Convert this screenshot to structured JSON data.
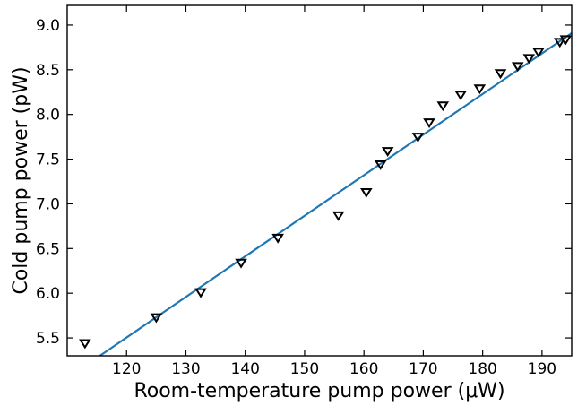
{
  "chart_data": {
    "type": "scatter",
    "title": "",
    "xlabel": "Room-temperature pump power (μW)",
    "ylabel": "Cold pump power (pW)",
    "xlim": [
      110,
      195
    ],
    "ylim": [
      5.3,
      9.22
    ],
    "x_ticks": [
      120,
      130,
      140,
      150,
      160,
      170,
      180,
      190
    ],
    "y_ticks": [
      5.5,
      6.0,
      6.5,
      7.0,
      7.5,
      8.0,
      8.5,
      9.0
    ],
    "y_tick_labels": [
      "5.5",
      "6.0",
      "6.5",
      "7.0",
      "7.5",
      "8.0",
      "8.5",
      "9.0"
    ],
    "grid": false,
    "legend": "none",
    "series": [
      {
        "kind": "scatter",
        "marker": "triangle-down",
        "color": "#000000",
        "points": [
          [
            113.0,
            5.44
          ],
          [
            125.0,
            5.73
          ],
          [
            132.5,
            6.01
          ],
          [
            139.3,
            6.34
          ],
          [
            145.5,
            6.62
          ],
          [
            155.7,
            6.87
          ],
          [
            160.4,
            7.13
          ],
          [
            162.8,
            7.44
          ],
          [
            164.0,
            7.59
          ],
          [
            169.1,
            7.75
          ],
          [
            171.0,
            7.91
          ],
          [
            173.3,
            8.1
          ],
          [
            176.3,
            8.22
          ],
          [
            179.5,
            8.29
          ],
          [
            183.0,
            8.46
          ],
          [
            185.9,
            8.54
          ],
          [
            187.8,
            8.63
          ],
          [
            189.4,
            8.7
          ],
          [
            193.0,
            8.81
          ],
          [
            194.0,
            8.84
          ]
        ]
      },
      {
        "kind": "line",
        "color": "#1f77b4",
        "points": [
          [
            115.5,
            5.3
          ],
          [
            195.0,
            8.91
          ]
        ]
      }
    ]
  }
}
